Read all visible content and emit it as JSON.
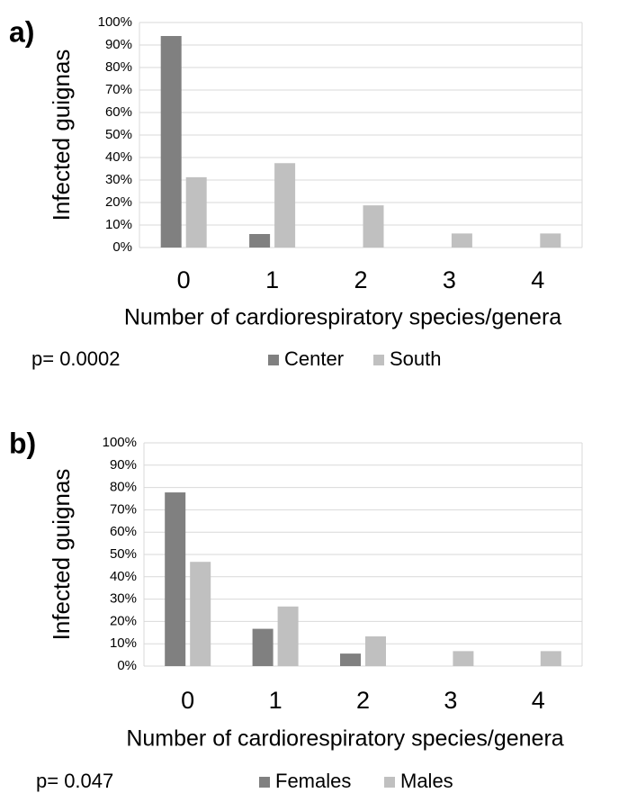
{
  "chart_data": [
    {
      "type": "bar",
      "panel_label": "a)",
      "ylabel": "Infected guignas",
      "xlabel": "Number of cardiorespiratory species/genera",
      "annotation": "p= 0.0002",
      "categories": [
        "0",
        "1",
        "2",
        "3",
        "4"
      ],
      "series": [
        {
          "name": "Center",
          "color": "#808080",
          "values": [
            94,
            6,
            0,
            0,
            0
          ]
        },
        {
          "name": "South",
          "color": "#c0c0c0",
          "values": [
            31.25,
            37.5,
            18.75,
            6.25,
            6.25
          ]
        }
      ],
      "ylim": [
        0,
        100
      ],
      "yticks": [
        {
          "value": 0,
          "label": "0%"
        },
        {
          "value": 10,
          "label": "10%"
        },
        {
          "value": 20,
          "label": "20%"
        },
        {
          "value": 30,
          "label": "30%"
        },
        {
          "value": 40,
          "label": "40%"
        },
        {
          "value": 50,
          "label": "50%"
        },
        {
          "value": 60,
          "label": "60%"
        },
        {
          "value": 70,
          "label": "70%"
        },
        {
          "value": 80,
          "label": "80%"
        },
        {
          "value": 90,
          "label": "90%"
        },
        {
          "value": 100,
          "label": "100%"
        }
      ],
      "grid": true,
      "legend": "bottom"
    },
    {
      "type": "bar",
      "panel_label": "b)",
      "ylabel": "Infected guignas",
      "xlabel": "Number of cardiorespiratory species/genera",
      "annotation": "p= 0.047",
      "categories": [
        "0",
        "1",
        "2",
        "3",
        "4"
      ],
      "series": [
        {
          "name": "Females",
          "color": "#808080",
          "values": [
            77.8,
            16.7,
            5.6,
            0,
            0
          ]
        },
        {
          "name": "Males",
          "color": "#c0c0c0",
          "values": [
            46.7,
            26.7,
            13.3,
            6.7,
            6.7
          ]
        }
      ],
      "ylim": [
        0,
        100
      ],
      "yticks": [
        {
          "value": 0,
          "label": "0%"
        },
        {
          "value": 10,
          "label": "10%"
        },
        {
          "value": 20,
          "label": "20%"
        },
        {
          "value": 30,
          "label": "30%"
        },
        {
          "value": 40,
          "label": "40%"
        },
        {
          "value": 50,
          "label": "50%"
        },
        {
          "value": 60,
          "label": "60%"
        },
        {
          "value": 70,
          "label": "70%"
        },
        {
          "value": 80,
          "label": "80%"
        },
        {
          "value": 90,
          "label": "90%"
        },
        {
          "value": 100,
          "label": "100%"
        }
      ],
      "grid": true,
      "legend": "bottom"
    }
  ]
}
